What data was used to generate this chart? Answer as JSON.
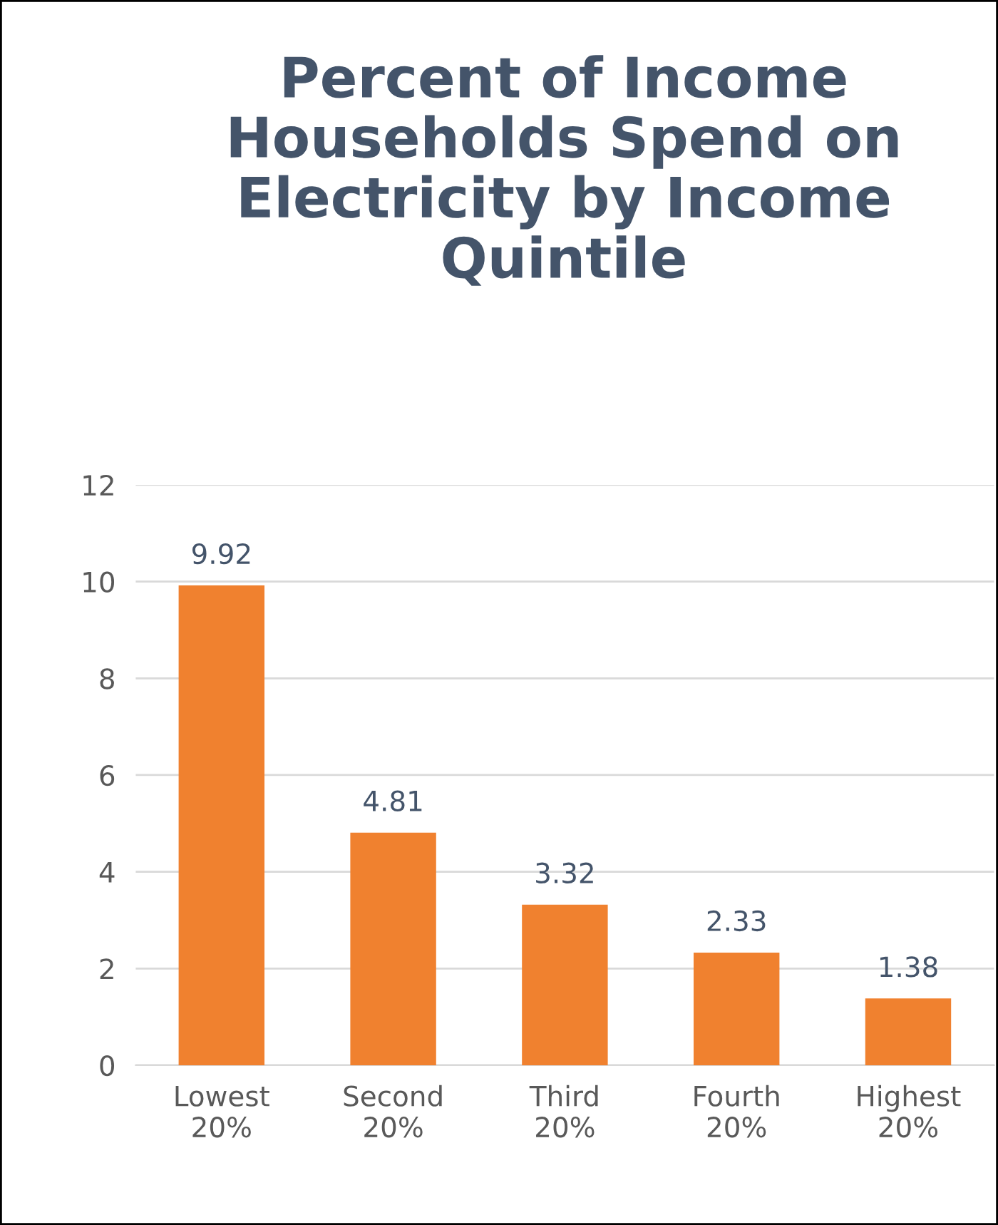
{
  "chart_data": {
    "type": "bar",
    "title": "Percent of Income\nHouseholds Spend on\nElectricity by Income\nQuintile",
    "categories": [
      "Lowest\n20%",
      "Second\n20%",
      "Third\n20%",
      "Fourth\n20%",
      "Highest\n20%"
    ],
    "values": [
      9.92,
      4.81,
      3.32,
      2.33,
      1.38
    ],
    "color": "#f0812f",
    "ylim": [
      0,
      12
    ],
    "yticks": [
      0,
      2,
      4,
      6,
      8,
      10,
      12
    ],
    "grid": "y",
    "data_labels": true,
    "legend": false
  }
}
